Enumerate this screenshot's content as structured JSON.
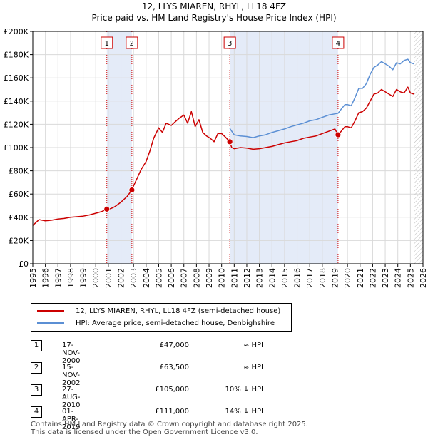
{
  "chart_data": {
    "type": "line",
    "title": "12, LLYS MIAREN, RHYL, LL18 4FZ",
    "subtitle": "Price paid vs. HM Land Registry's House Price Index (HPI)",
    "xlim": [
      1995,
      2026
    ],
    "ylim": [
      0,
      200000
    ],
    "x_ticks": [
      "1995",
      "1996",
      "1997",
      "1998",
      "1999",
      "2000",
      "2001",
      "2002",
      "2003",
      "2004",
      "2005",
      "2006",
      "2007",
      "2008",
      "2009",
      "2010",
      "2011",
      "2012",
      "2013",
      "2014",
      "2015",
      "2016",
      "2017",
      "2018",
      "2019",
      "2020",
      "2021",
      "2022",
      "2023",
      "2024",
      "2025",
      "2026"
    ],
    "y_ticks": [
      "£0",
      "£20K",
      "£40K",
      "£60K",
      "£80K",
      "£100K",
      "£120K",
      "£140K",
      "£160K",
      "£180K",
      "£200K"
    ],
    "colors": {
      "price": "#cc0000",
      "hpi": "#5b8fd4",
      "band": "#dde6f6",
      "grid": "#d9d9d9"
    },
    "series": [
      {
        "name": "12, LLYS MIAREN, RHYL, LL18 4FZ (semi-detached house)",
        "key": "price",
        "x": [
          1995.0,
          1995.5,
          1996.0,
          1996.5,
          1997.0,
          1997.5,
          1998.0,
          1998.5,
          1999.0,
          1999.5,
          2000.0,
          2000.5,
          2000.88,
          2001.2,
          2001.5,
          2002.0,
          2002.5,
          2002.87,
          2003.0,
          2003.3,
          2003.6,
          2004.0,
          2004.3,
          2004.6,
          2005.0,
          2005.3,
          2005.6,
          2006.0,
          2006.3,
          2006.6,
          2007.0,
          2007.3,
          2007.6,
          2007.9,
          2008.2,
          2008.5,
          2008.8,
          2009.1,
          2009.4,
          2009.7,
          2010.0,
          2010.3,
          2010.65,
          2010.8,
          2011.0,
          2011.5,
          2012.0,
          2012.5,
          2013.0,
          2013.5,
          2014.0,
          2014.5,
          2015.0,
          2015.5,
          2016.0,
          2016.5,
          2017.0,
          2017.5,
          2018.0,
          2018.5,
          2019.0,
          2019.25,
          2019.5,
          2019.8,
          2020.0,
          2020.3,
          2020.6,
          2020.9,
          2021.2,
          2021.5,
          2021.8,
          2022.1,
          2022.4,
          2022.7,
          2023.0,
          2023.3,
          2023.6,
          2023.9,
          2024.2,
          2024.5,
          2024.8,
          2025.0,
          2025.3
        ],
        "values": [
          33000,
          38000,
          37000,
          37500,
          38500,
          39000,
          40000,
          40500,
          41000,
          42000,
          43500,
          45000,
          47000,
          47500,
          49000,
          53000,
          58000,
          63500,
          67000,
          74000,
          81000,
          88000,
          97000,
          108000,
          117000,
          113000,
          121000,
          119000,
          122000,
          125000,
          128000,
          121000,
          131000,
          118000,
          124000,
          113000,
          110000,
          108000,
          105000,
          112000,
          112000,
          109000,
          105000,
          100000,
          99000,
          100000,
          99500,
          98500,
          99000,
          100000,
          101000,
          102500,
          104000,
          105000,
          106000,
          108000,
          109000,
          110000,
          112000,
          114000,
          116000,
          111000,
          114000,
          118000,
          118000,
          117000,
          123000,
          130000,
          131000,
          134000,
          140000,
          146000,
          147000,
          150000,
          148000,
          146000,
          144000,
          150000,
          148000,
          147000,
          152000,
          147000,
          146000
        ]
      },
      {
        "name": "HPI: Average price, semi-detached house, Denbighshire",
        "key": "hpi",
        "x": [
          2010.65,
          2011.0,
          2011.5,
          2012.0,
          2012.5,
          2013.0,
          2013.5,
          2014.0,
          2014.5,
          2015.0,
          2015.5,
          2016.0,
          2016.5,
          2017.0,
          2017.5,
          2018.0,
          2018.5,
          2019.0,
          2019.25,
          2019.5,
          2019.8,
          2020.0,
          2020.3,
          2020.6,
          2020.9,
          2021.2,
          2021.5,
          2021.8,
          2022.1,
          2022.4,
          2022.7,
          2023.0,
          2023.3,
          2023.6,
          2023.9,
          2024.2,
          2024.5,
          2024.8,
          2025.0,
          2025.3
        ],
        "values": [
          116500,
          111000,
          110000,
          109500,
          108500,
          110000,
          111000,
          113000,
          114500,
          116000,
          118000,
          119500,
          121000,
          123000,
          124000,
          126000,
          128000,
          129000,
          129500,
          133000,
          137000,
          137000,
          136000,
          143000,
          151000,
          151000,
          155000,
          163000,
          169000,
          171000,
          174000,
          172000,
          170000,
          167000,
          173000,
          172000,
          175000,
          176000,
          173000,
          172000
        ]
      }
    ],
    "sales": [
      {
        "marker": "1",
        "x": 2000.88,
        "value": 47000
      },
      {
        "marker": "2",
        "x": 2002.87,
        "value": 63500
      },
      {
        "marker": "3",
        "x": 2010.65,
        "value": 105000
      },
      {
        "marker": "4",
        "x": 2019.25,
        "value": 111000
      }
    ],
    "bands": [
      [
        2000.88,
        2002.87
      ],
      [
        2010.65,
        2019.25
      ]
    ]
  },
  "legend": {
    "price_label": "12, LLYS MIAREN, RHYL, LL18 4FZ (semi-detached house)",
    "hpi_label": "HPI: Average price, semi-detached house, Denbighshire"
  },
  "transactions": [
    {
      "marker": "1",
      "date": "17-NOV-2000",
      "price": "£47,000",
      "relation": "≈ HPI"
    },
    {
      "marker": "2",
      "date": "15-NOV-2002",
      "price": "£63,500",
      "relation": "≈ HPI"
    },
    {
      "marker": "3",
      "date": "27-AUG-2010",
      "price": "£105,000",
      "relation": "10% ↓ HPI"
    },
    {
      "marker": "4",
      "date": "01-APR-2019",
      "price": "£111,000",
      "relation": "14% ↓ HPI"
    }
  ],
  "footer": {
    "line1": "Contains HM Land Registry data © Crown copyright and database right 2025.",
    "line2": "This data is licensed under the Open Government Licence v3.0."
  }
}
